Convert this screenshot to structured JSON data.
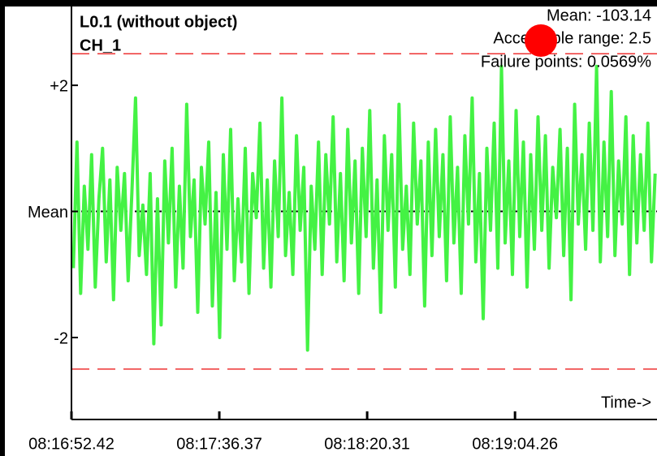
{
  "chart_data": {
    "type": "line",
    "title": "L0.1 (without object)",
    "subtitle": "CH_1",
    "annotations": [
      "Mean: -103.14",
      "Acceptable range: 2.5",
      "Failure points: 0.0569%"
    ],
    "xlabel": "Time->",
    "series": [
      {
        "name": "CH_1",
        "color": "#44f244",
        "values": [
          -0.9,
          1.1,
          -1.3,
          0.4,
          -0.6,
          0.9,
          -1.2,
          0.2,
          1.0,
          -0.8,
          0.5,
          -1.4,
          0.7,
          -0.3,
          0.6,
          -1.1,
          0.3,
          1.8,
          -0.7,
          0.1,
          -1.0,
          0.6,
          -2.1,
          0.2,
          -1.8,
          0.8,
          -0.5,
          1.0,
          -1.2,
          0.4,
          -0.9,
          1.7,
          -0.4,
          0.5,
          -1.6,
          0.7,
          -0.2,
          1.1,
          -1.5,
          0.3,
          -2.0,
          0.9,
          -0.6,
          1.3,
          -1.1,
          0.2,
          -0.8,
          1.0,
          -1.3,
          0.6,
          -0.1,
          1.4,
          -0.9,
          0.5,
          -1.2,
          0.8,
          -0.4,
          1.8,
          -0.7,
          0.3,
          -1.0,
          1.2,
          -0.3,
          0.7,
          -2.2,
          0.4,
          -0.6,
          1.1,
          -1.0,
          0.9,
          -0.2,
          1.5,
          -0.8,
          0.6,
          -1.1,
          1.3,
          -0.5,
          0.8,
          -1.3,
          1.0,
          -0.4,
          1.6,
          -0.9,
          0.5,
          -1.6,
          1.2,
          -0.3,
          0.9,
          -1.2,
          1.7,
          -0.6,
          0.4,
          -1.0,
          1.4,
          -0.2,
          0.8,
          -1.5,
          1.1,
          -0.7,
          1.3,
          -0.4,
          0.9,
          -1.1,
          1.5,
          -0.5,
          0.7,
          -1.3,
          1.2,
          -0.2,
          1.8,
          -0.8,
          0.6,
          -1.7,
          1.0,
          -0.3,
          1.4,
          -0.9,
          2.3,
          -0.5,
          0.8,
          -1.0,
          1.6,
          -0.4,
          1.1,
          -1.2,
          0.9,
          -0.6,
          1.5,
          -0.3,
          1.2,
          -0.9,
          0.7,
          -0.1,
          1.3,
          -0.7,
          1.0,
          -1.4,
          1.7,
          -0.2,
          0.9,
          -0.6,
          1.4,
          -0.3,
          2.3,
          -0.8,
          1.1,
          -0.4,
          1.9,
          -0.7,
          0.8,
          -0.2,
          1.5,
          -1.0,
          1.2,
          -0.5,
          0.9,
          -0.3,
          1.4,
          -0.8,
          0.6
        ]
      }
    ],
    "bands": [
      2.5,
      -2.5
    ],
    "xlim": [
      0,
      160
    ],
    "xticks": [
      {
        "value": 0,
        "label": "08:16:52.42"
      },
      {
        "value": 40.4,
        "label": "08:17:36.37"
      },
      {
        "value": 80.8,
        "label": "08:18:20.31"
      },
      {
        "value": 121.2,
        "label": "08:19:04.26"
      }
    ],
    "ylim": [
      -3.3,
      3.25
    ],
    "yticks": [
      {
        "value": 2,
        "label": "+2"
      },
      {
        "value": 0,
        "label": "Mean"
      },
      -2
    ]
  }
}
